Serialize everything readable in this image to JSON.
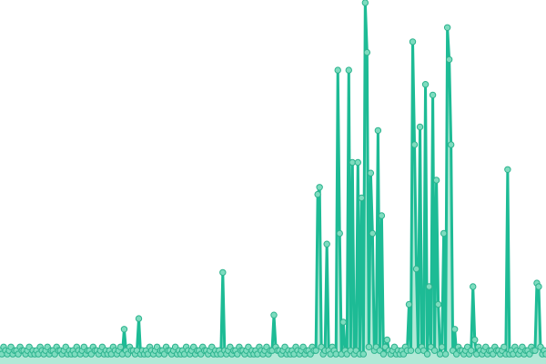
{
  "chart_data": {
    "type": "line",
    "title": "",
    "xlabel": "",
    "ylabel": "",
    "ylim": [
      0,
      100
    ],
    "grid": false,
    "axes_visible": false,
    "markers": true,
    "area_fill": true,
    "colors": {
      "line": "#1dbb95",
      "marker_fill": "#7edcbf",
      "marker_stroke": "#2db38e",
      "area": "#9fe3cd"
    },
    "values": [
      2,
      1,
      3,
      2,
      1,
      2,
      3,
      1,
      2,
      2,
      1,
      3,
      2,
      2,
      1,
      2,
      3,
      1,
      2,
      1,
      2,
      1,
      3,
      2,
      1,
      2,
      3,
      1,
      2,
      2,
      1,
      3,
      2,
      2,
      1,
      2,
      3,
      1,
      2,
      1,
      2,
      1,
      3,
      2,
      1,
      2,
      3,
      1,
      2,
      2,
      1,
      3,
      2,
      2,
      1,
      2,
      3,
      1,
      2,
      1,
      2,
      1,
      3,
      2,
      1,
      2,
      3,
      1,
      8,
      2,
      1,
      3,
      2,
      2,
      1,
      2,
      11,
      1,
      2,
      1,
      2,
      1,
      3,
      2,
      1,
      2,
      3,
      1,
      2,
      2,
      1,
      3,
      2,
      2,
      1,
      2,
      3,
      1,
      2,
      1,
      2,
      1,
      3,
      2,
      1,
      2,
      3,
      1,
      2,
      2,
      1,
      3,
      2,
      2,
      1,
      2,
      3,
      1,
      2,
      1,
      2,
      1,
      24,
      2,
      1,
      2,
      3,
      1,
      2,
      2,
      1,
      3,
      2,
      2,
      1,
      2,
      3,
      1,
      2,
      1,
      2,
      1,
      3,
      2,
      1,
      2,
      3,
      1,
      2,
      2,
      12,
      3,
      2,
      2,
      1,
      2,
      3,
      1,
      2,
      1,
      2,
      1,
      3,
      2,
      1,
      2,
      3,
      1,
      2,
      2,
      1,
      3,
      2,
      2,
      46,
      48,
      3,
      1,
      2,
      32,
      2,
      1,
      3,
      2,
      1,
      81,
      35,
      1,
      10,
      2,
      1,
      81,
      2,
      55,
      1,
      2,
      55,
      1,
      45,
      1,
      100,
      86,
      3,
      52,
      35,
      2,
      3,
      64,
      2,
      40,
      1,
      3,
      5,
      2,
      1,
      2,
      3,
      1,
      2,
      1,
      2,
      1,
      3,
      2,
      15,
      2,
      89,
      60,
      25,
      2,
      65,
      3,
      2,
      77,
      1,
      20,
      3,
      74,
      2,
      50,
      15,
      1,
      3,
      35,
      1,
      93,
      84,
      60,
      2,
      8,
      1,
      3,
      2,
      2,
      1,
      2,
      3,
      1,
      2,
      20,
      5,
      1,
      3,
      2,
      1,
      2,
      3,
      1,
      2,
      2,
      1,
      3,
      2,
      2,
      1,
      2,
      3,
      1,
      53,
      1,
      2,
      1,
      3,
      2,
      1,
      2,
      3,
      1,
      2,
      2,
      1,
      3,
      2,
      2,
      21,
      20,
      3,
      1,
      2,
      1
    ]
  }
}
